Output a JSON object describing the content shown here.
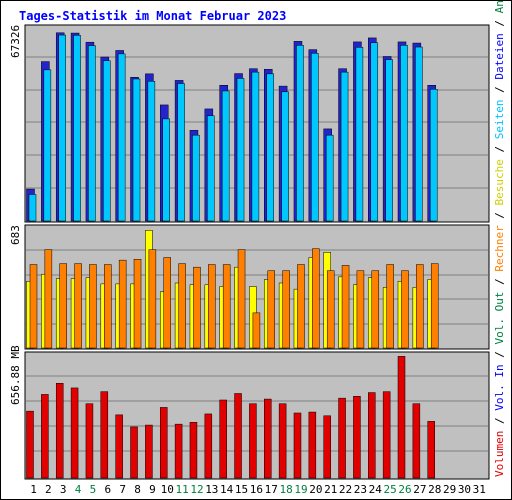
{
  "chart_data": {
    "type": "bar",
    "title": "Tages-Statistik im Monat Februar 2023",
    "categories": [
      "1",
      "2",
      "3",
      "4",
      "5",
      "6",
      "7",
      "8",
      "9",
      "10",
      "11",
      "12",
      "13",
      "14",
      "15",
      "16",
      "17",
      "18",
      "19",
      "20",
      "21",
      "22",
      "23",
      "24",
      "25",
      "26",
      "27",
      "28",
      "29",
      "30",
      "31"
    ],
    "weekend_days": [
      "4",
      "5",
      "11",
      "12",
      "18",
      "19",
      "25",
      "26"
    ],
    "panels": [
      {
        "name": "requests",
        "ymax_label": "67326",
        "ymax": 67326,
        "series": [
          {
            "name": "Anfragen",
            "color": "#3333cc",
            "values": [
              11200,
              55900,
              66000,
              65900,
              62700,
              null,
              null,
              null,
              null,
              null,
              null,
              null,
              null,
              null,
              null,
              null,
              null,
              null,
              null,
              null,
              null,
              null,
              null,
              null,
              null,
              null,
              null,
              null,
              null,
              null,
              null
            ]
          },
          {
            "name": "Dateien",
            "color": "#00c8ff",
            "values": [
              null,
              null,
              null,
              null,
              null,
              null,
              null,
              null,
              null,
              null,
              null,
              null,
              null,
              null,
              null,
              null,
              null,
              null,
              null,
              null,
              null,
              null,
              null,
              null,
              null,
              null,
              null,
              null,
              null,
              null,
              null
            ]
          },
          {
            "name": "Seiten",
            "color": "#00c8ff",
            "values": [
              null,
              null,
              null,
              null,
              null,
              null,
              null,
              null,
              null,
              null,
              null,
              null,
              null,
              null,
              null,
              null,
              null,
              null,
              null,
              null,
              null,
              null,
              null,
              null,
              null,
              null,
              null,
              null,
              null,
              null,
              null
            ]
          }
        ]
      },
      {
        "name": "visits",
        "ymax_label": "683",
        "ymax": 683,
        "series": [
          {
            "name": "Besuche",
            "color": "#ffff00",
            "values": []
          },
          {
            "name": "Rechner",
            "color": "#ff8000",
            "values": []
          }
        ]
      },
      {
        "name": "volume",
        "ymax_label": "656.88 MB",
        "ymax": 656.88,
        "series": [
          {
            "name": "Volumen",
            "color": "#e00000",
            "values": []
          }
        ]
      }
    ]
  },
  "legend": {
    "top": [
      {
        "text": "Anfragen",
        "color": "#008040"
      },
      {
        "text": "Dateien",
        "color": "#0000ff"
      },
      {
        "text": "Seiten",
        "color": "#00c0ff"
      },
      {
        "text": "Besuche",
        "color": "#d0d000"
      },
      {
        "text": "Rechner",
        "color": "#ff8000"
      },
      {
        "text": "Vol. Out",
        "color": "#008040"
      },
      {
        "text": "Vol. In",
        "color": "#0000ff"
      },
      {
        "text": "Volumen",
        "color": "#e00000"
      }
    ],
    "separator": " / ",
    "separator_color": "#000000"
  }
}
